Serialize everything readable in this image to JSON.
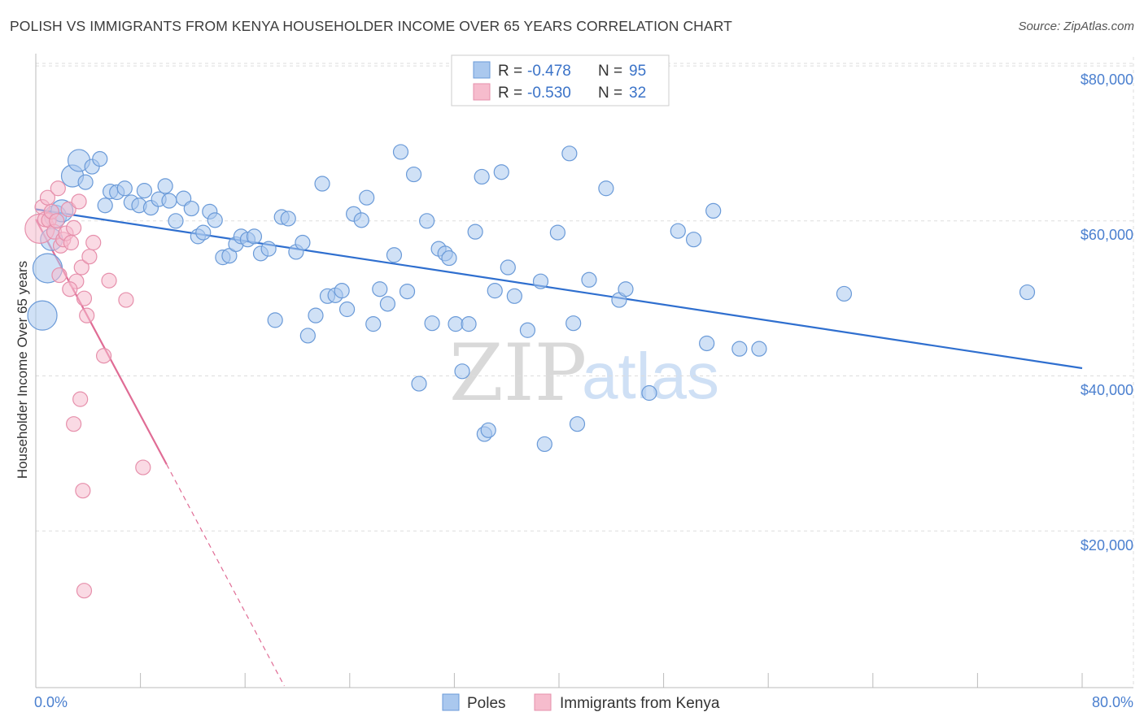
{
  "header": {
    "title": "POLISH VS IMMIGRANTS FROM KENYA HOUSEHOLDER INCOME OVER 65 YEARS CORRELATION CHART",
    "source": "Source: ZipAtlas.com"
  },
  "watermark": {
    "zip": "ZIP",
    "atlas": "atlas"
  },
  "colors": {
    "poles_fill": "#aac8ee",
    "poles_stroke": "#6a9ad8",
    "poles_line": "#2f6fcf",
    "kenya_fill": "#f6bccd",
    "kenya_stroke": "#e68fab",
    "kenya_line": "#e06c95",
    "grid": "#dddddd",
    "tick_text": "#4a7fcf"
  },
  "legend": {
    "poles": {
      "r_label": "R = ",
      "r_value": "-0.478",
      "n_label": "N = ",
      "n_value": "95"
    },
    "kenya": {
      "r_label": "R = ",
      "r_value": "-0.530",
      "n_label": "N = ",
      "n_value": "32"
    }
  },
  "bottom_legend": {
    "poles": "Poles",
    "kenya": "Immigrants from Kenya"
  },
  "chart_data": {
    "type": "scatter",
    "title": "POLISH VS IMMIGRANTS FROM KENYA HOUSEHOLDER INCOME OVER 65 YEARS CORRELATION CHART",
    "xlabel": "",
    "ylabel": "Householder Income Over 65 years",
    "xlim": [
      0,
      80
    ],
    "ylim": [
      0,
      82000
    ],
    "x_tick_labels": [
      "0.0%",
      "80.0%"
    ],
    "y_ticks": [
      20000,
      40000,
      60000,
      80000
    ],
    "y_tick_labels": [
      "$20,000",
      "$40,000",
      "$60,000",
      "$80,000"
    ],
    "grid": true,
    "series": [
      {
        "name": "Poles",
        "r": -0.478,
        "n": 95,
        "trend": {
          "x0": 0,
          "y0": 61500,
          "x1": 80,
          "y1": 41000
        },
        "points": [
          [
            0.5,
            47800,
            2
          ],
          [
            0.9,
            53900,
            2
          ],
          [
            1.2,
            57600,
            1.5
          ],
          [
            1.5,
            60600,
            1.5
          ],
          [
            2.0,
            61300,
            1.5
          ],
          [
            2.8,
            65800,
            1.5
          ],
          [
            3.3,
            67800,
            1.5
          ],
          [
            3.8,
            65000,
            1
          ],
          [
            4.3,
            67000,
            1
          ],
          [
            4.9,
            68000,
            1
          ],
          [
            5.3,
            62000,
            1
          ],
          [
            5.7,
            63800,
            1
          ],
          [
            6.2,
            63700,
            1
          ],
          [
            6.8,
            64200,
            1
          ],
          [
            7.3,
            62400,
            1
          ],
          [
            7.9,
            62000,
            1
          ],
          [
            8.3,
            63900,
            1
          ],
          [
            8.8,
            61700,
            1
          ],
          [
            9.4,
            62800,
            1
          ],
          [
            9.9,
            64500,
            1
          ],
          [
            10.2,
            62600,
            1
          ],
          [
            10.7,
            60000,
            1
          ],
          [
            11.3,
            62900,
            1
          ],
          [
            11.9,
            61600,
            1
          ],
          [
            12.4,
            58000,
            1
          ],
          [
            12.8,
            58500,
            1
          ],
          [
            13.3,
            61200,
            1
          ],
          [
            13.7,
            60100,
            1
          ],
          [
            14.3,
            55300,
            1
          ],
          [
            14.8,
            55500,
            1
          ],
          [
            15.3,
            57000,
            1
          ],
          [
            15.7,
            58000,
            1
          ],
          [
            16.2,
            57600,
            1
          ],
          [
            16.7,
            58000,
            1
          ],
          [
            17.2,
            55800,
            1
          ],
          [
            17.8,
            56400,
            1
          ],
          [
            18.3,
            47200,
            1
          ],
          [
            18.8,
            60500,
            1
          ],
          [
            19.3,
            60300,
            1
          ],
          [
            19.9,
            56000,
            1
          ],
          [
            20.4,
            57200,
            1
          ],
          [
            20.8,
            45200,
            1
          ],
          [
            21.4,
            47800,
            1
          ],
          [
            21.9,
            64800,
            1
          ],
          [
            22.3,
            50300,
            1
          ],
          [
            22.9,
            50400,
            1
          ],
          [
            23.4,
            51000,
            1
          ],
          [
            23.8,
            48600,
            1
          ],
          [
            24.3,
            60900,
            1
          ],
          [
            24.9,
            60100,
            1
          ],
          [
            25.3,
            63000,
            1
          ],
          [
            25.8,
            46700,
            1
          ],
          [
            26.3,
            51200,
            1
          ],
          [
            26.9,
            49300,
            1
          ],
          [
            27.4,
            55600,
            1
          ],
          [
            27.9,
            68900,
            1
          ],
          [
            28.4,
            50900,
            1
          ],
          [
            28.9,
            66000,
            1
          ],
          [
            29.3,
            39000,
            1
          ],
          [
            29.9,
            60000,
            1
          ],
          [
            30.3,
            46800,
            1
          ],
          [
            30.8,
            56400,
            1
          ],
          [
            31.3,
            55800,
            1
          ],
          [
            31.6,
            55200,
            1
          ],
          [
            32.1,
            46700,
            1
          ],
          [
            32.6,
            40600,
            1
          ],
          [
            33.1,
            46700,
            1
          ],
          [
            33.6,
            58600,
            1
          ],
          [
            34.1,
            65700,
            1
          ],
          [
            34.3,
            32500,
            1
          ],
          [
            34.6,
            33000,
            1
          ],
          [
            35.1,
            51000,
            1
          ],
          [
            35.6,
            66300,
            1
          ],
          [
            36.1,
            54000,
            1
          ],
          [
            36.6,
            50300,
            1
          ],
          [
            37.6,
            45900,
            1
          ],
          [
            38.6,
            52200,
            1
          ],
          [
            38.9,
            31200,
            1
          ],
          [
            39.9,
            58500,
            1
          ],
          [
            40.8,
            68700,
            1
          ],
          [
            41.1,
            46800,
            1
          ],
          [
            41.4,
            33800,
            1
          ],
          [
            42.3,
            52400,
            1
          ],
          [
            43.6,
            64200,
            1
          ],
          [
            44.6,
            49800,
            1
          ],
          [
            45.1,
            51200,
            1
          ],
          [
            46.9,
            37800,
            1
          ],
          [
            49.1,
            58700,
            1
          ],
          [
            50.3,
            57600,
            1
          ],
          [
            51.3,
            44200,
            1
          ],
          [
            51.8,
            61300,
            1
          ],
          [
            53.8,
            43500,
            1
          ],
          [
            55.3,
            43500,
            1
          ],
          [
            61.8,
            50600,
            1
          ],
          [
            75.8,
            50800,
            1
          ]
        ]
      },
      {
        "name": "Immigrants from Kenya",
        "r": -0.53,
        "n": 32,
        "trend": {
          "x0": 0,
          "y0": 60200,
          "x1": 10,
          "y1": 28600,
          "dash_to_x": 19,
          "dash_to_y": 0
        },
        "points": [
          [
            0.3,
            59000,
            2
          ],
          [
            0.5,
            61800,
            1
          ],
          [
            0.7,
            60200,
            1
          ],
          [
            0.9,
            63000,
            1
          ],
          [
            1.0,
            60100,
            1
          ],
          [
            1.2,
            61200,
            1
          ],
          [
            1.4,
            58600,
            1
          ],
          [
            1.6,
            60000,
            1
          ],
          [
            1.7,
            64200,
            1
          ],
          [
            1.9,
            56800,
            1
          ],
          [
            2.1,
            57600,
            1
          ],
          [
            2.3,
            58400,
            1
          ],
          [
            2.5,
            61500,
            1
          ],
          [
            2.7,
            57200,
            1
          ],
          [
            2.9,
            59100,
            1
          ],
          [
            3.1,
            52200,
            1
          ],
          [
            3.3,
            62500,
            1
          ],
          [
            3.5,
            54000,
            1
          ],
          [
            3.7,
            50000,
            1
          ],
          [
            3.9,
            47800,
            1
          ],
          [
            4.1,
            55400,
            1
          ],
          [
            4.4,
            57200,
            1
          ],
          [
            2.6,
            51200,
            1
          ],
          [
            3.4,
            37000,
            1
          ],
          [
            2.9,
            33800,
            1
          ],
          [
            3.6,
            25200,
            1
          ],
          [
            3.7,
            12300,
            1
          ],
          [
            5.2,
            42600,
            1
          ],
          [
            5.6,
            52300,
            1
          ],
          [
            6.9,
            49800,
            1
          ],
          [
            8.2,
            28200,
            1
          ],
          [
            1.8,
            53000,
            1
          ]
        ]
      }
    ]
  }
}
